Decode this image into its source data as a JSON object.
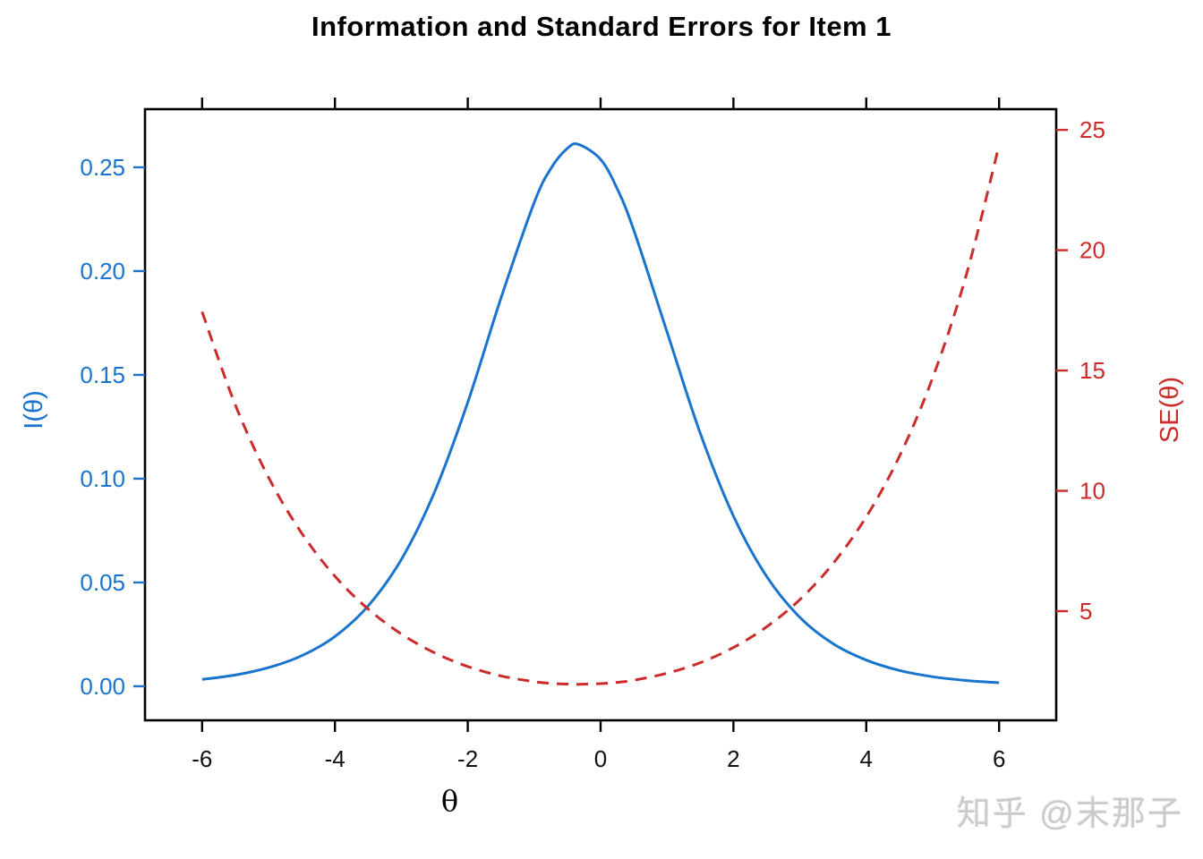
{
  "title": "Information and Standard Errors for Item 1",
  "watermark": "知乎 @末那子",
  "chart_data": {
    "type": "line",
    "title": "Information and Standard Errors for Item 1",
    "xlabel": "θ",
    "ylabel_left": "I(θ)",
    "ylabel_right": "SE(θ)",
    "legend": "none",
    "grid": false,
    "x_ticks": [
      -6,
      -4,
      -2,
      0,
      2,
      4,
      6
    ],
    "yleft_ticks": [
      "0.00",
      "0.05",
      "0.10",
      "0.15",
      "0.20",
      "0.25"
    ],
    "yleft_tick_values": [
      0,
      0.05,
      0.1,
      0.15,
      0.2,
      0.25
    ],
    "yright_ticks": [
      5,
      10,
      15,
      20,
      25
    ],
    "x_range": [
      -6.86,
      6.86
    ],
    "yleft_range": [
      -0.0164,
      0.278
    ],
    "yright_range": [
      0.465,
      25.86
    ],
    "colors": {
      "info": "#1874CD",
      "se": "#CC2B2B",
      "axis": "#000000"
    },
    "x": [
      -6,
      -5.5,
      -5,
      -4.5,
      -4,
      -3.5,
      -3,
      -2.5,
      -2,
      -1.5,
      -1,
      -0.75,
      -0.5,
      -0.33,
      0,
      0.25,
      0.5,
      1,
      1.5,
      2,
      2.5,
      3,
      3.5,
      4,
      4.5,
      5,
      5.5,
      6
    ],
    "series": [
      {
        "name": "Item information I(θ)",
        "axis": "left",
        "style": "solid",
        "color": "#1874CD",
        "values": [
          0.0033,
          0.0054,
          0.009,
          0.0147,
          0.024,
          0.0387,
          0.0611,
          0.0936,
          0.1368,
          0.187,
          0.233,
          0.2494,
          0.2591,
          0.261,
          0.2538,
          0.2397,
          0.2197,
          0.1707,
          0.1219,
          0.082,
          0.0529,
          0.0332,
          0.0205,
          0.0126,
          0.0076,
          0.0046,
          0.0028,
          0.0017
        ]
      },
      {
        "name": "Standard error SE(θ)",
        "axis": "right",
        "style": "dashed",
        "color": "#CC2B2B",
        "values": [
          17.44,
          13.57,
          10.56,
          8.24,
          6.45,
          5.09,
          4.05,
          3.27,
          2.7,
          2.31,
          2.07,
          2.0,
          1.97,
          1.96,
          1.99,
          2.04,
          2.13,
          2.42,
          2.86,
          3.49,
          4.35,
          5.48,
          6.98,
          8.92,
          11.44,
          14.7,
          18.91,
          24.36
        ]
      }
    ]
  }
}
